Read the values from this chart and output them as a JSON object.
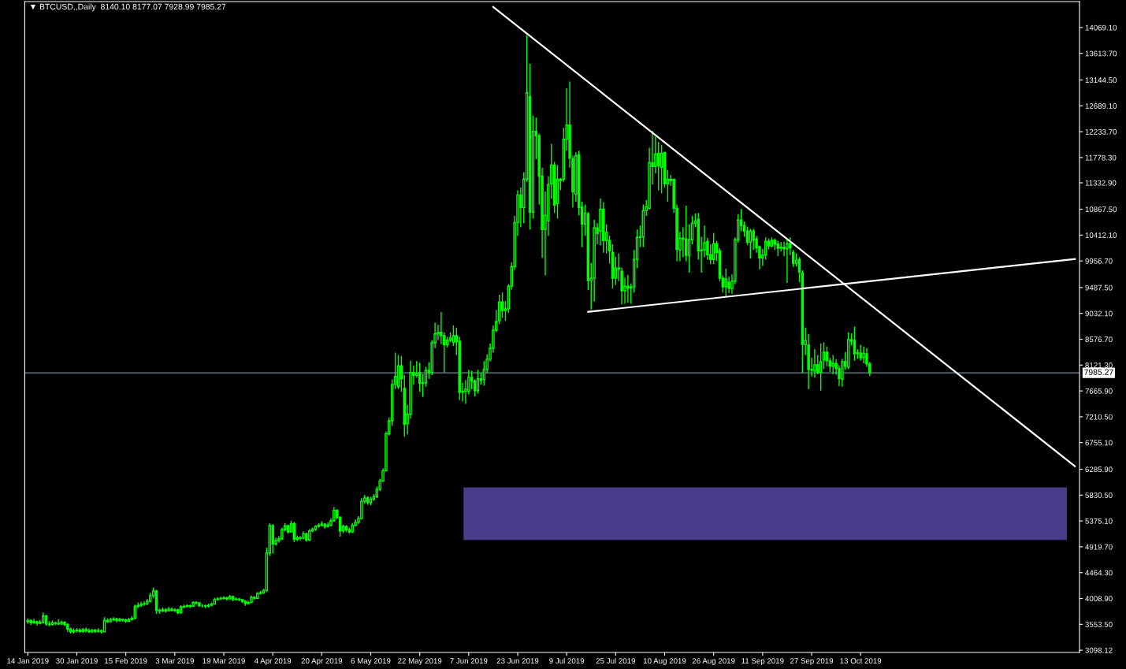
{
  "chart_data": {
    "type": "candlestick",
    "title": "▼ BTCUSD,,Daily  8140.10 8177.07 7928.99 7985.27",
    "color": "#00ff00",
    "x": [
      "2019-01-14",
      "2019-01-15",
      "2019-01-16",
      "2019-01-17",
      "2019-01-18",
      "2019-01-19",
      "2019-01-20",
      "2019-01-21",
      "2019-01-22",
      "2019-01-23",
      "2019-01-24",
      "2019-01-25",
      "2019-01-26",
      "2019-01-27",
      "2019-01-28",
      "2019-01-29",
      "2019-01-30",
      "2019-01-31",
      "2019-02-01",
      "2019-02-02",
      "2019-02-03",
      "2019-02-04",
      "2019-02-05",
      "2019-02-06",
      "2019-02-07",
      "2019-02-08",
      "2019-02-09",
      "2019-02-10",
      "2019-02-11",
      "2019-02-12",
      "2019-02-13",
      "2019-02-14",
      "2019-02-15",
      "2019-02-16",
      "2019-02-17",
      "2019-02-18",
      "2019-02-19",
      "2019-02-20",
      "2019-02-21",
      "2019-02-22",
      "2019-02-23",
      "2019-02-24",
      "2019-02-25",
      "2019-02-26",
      "2019-02-27",
      "2019-02-28",
      "2019-03-01",
      "2019-03-02",
      "2019-03-03",
      "2019-03-04",
      "2019-03-05",
      "2019-03-06",
      "2019-03-07",
      "2019-03-08",
      "2019-03-09",
      "2019-03-10",
      "2019-03-11",
      "2019-03-12",
      "2019-03-13",
      "2019-03-14",
      "2019-03-15",
      "2019-03-16",
      "2019-03-17",
      "2019-03-18",
      "2019-03-19",
      "2019-03-20",
      "2019-03-21",
      "2019-03-22",
      "2019-03-23",
      "2019-03-24",
      "2019-03-25",
      "2019-03-26",
      "2019-03-27",
      "2019-03-28",
      "2019-03-29",
      "2019-03-30",
      "2019-03-31",
      "2019-04-01",
      "2019-04-02",
      "2019-04-03",
      "2019-04-04",
      "2019-04-05",
      "2019-04-06",
      "2019-04-07",
      "2019-04-08",
      "2019-04-09",
      "2019-04-10",
      "2019-04-11",
      "2019-04-12",
      "2019-04-13",
      "2019-04-14",
      "2019-04-15",
      "2019-04-16",
      "2019-04-17",
      "2019-04-18",
      "2019-04-19",
      "2019-04-20",
      "2019-04-21",
      "2019-04-22",
      "2019-04-23",
      "2019-04-24",
      "2019-04-25",
      "2019-04-26",
      "2019-04-27",
      "2019-04-28",
      "2019-04-29",
      "2019-04-30",
      "2019-05-01",
      "2019-05-02",
      "2019-05-03",
      "2019-05-04",
      "2019-05-05",
      "2019-05-06",
      "2019-05-07",
      "2019-05-08",
      "2019-05-09",
      "2019-05-10",
      "2019-05-11",
      "2019-05-12",
      "2019-05-13",
      "2019-05-14",
      "2019-05-15",
      "2019-05-16",
      "2019-05-17",
      "2019-05-18",
      "2019-05-19",
      "2019-05-20",
      "2019-05-21",
      "2019-05-22",
      "2019-05-23",
      "2019-05-24",
      "2019-05-25",
      "2019-05-26",
      "2019-05-27",
      "2019-05-28",
      "2019-05-29",
      "2019-05-30",
      "2019-05-31",
      "2019-06-01",
      "2019-06-02",
      "2019-06-03",
      "2019-06-04",
      "2019-06-05",
      "2019-06-06",
      "2019-06-07",
      "2019-06-08",
      "2019-06-09",
      "2019-06-10",
      "2019-06-11",
      "2019-06-12",
      "2019-06-13",
      "2019-06-14",
      "2019-06-15",
      "2019-06-16",
      "2019-06-17",
      "2019-06-18",
      "2019-06-19",
      "2019-06-20",
      "2019-06-21",
      "2019-06-22",
      "2019-06-23",
      "2019-06-24",
      "2019-06-25",
      "2019-06-26",
      "2019-06-27",
      "2019-06-28",
      "2019-06-29",
      "2019-06-30",
      "2019-07-01",
      "2019-07-02",
      "2019-07-03",
      "2019-07-04",
      "2019-07-05",
      "2019-07-06",
      "2019-07-07",
      "2019-07-08",
      "2019-07-09",
      "2019-07-10",
      "2019-07-11",
      "2019-07-12",
      "2019-07-13",
      "2019-07-14",
      "2019-07-15",
      "2019-07-16",
      "2019-07-17",
      "2019-07-18",
      "2019-07-19",
      "2019-07-20",
      "2019-07-21",
      "2019-07-22",
      "2019-07-23",
      "2019-07-24",
      "2019-07-25",
      "2019-07-26",
      "2019-07-27",
      "2019-07-28",
      "2019-07-29",
      "2019-07-30",
      "2019-07-31",
      "2019-08-01",
      "2019-08-02",
      "2019-08-03",
      "2019-08-04",
      "2019-08-05",
      "2019-08-06",
      "2019-08-07",
      "2019-08-08",
      "2019-08-09",
      "2019-08-10",
      "2019-08-11",
      "2019-08-12",
      "2019-08-13",
      "2019-08-14",
      "2019-08-15",
      "2019-08-16",
      "2019-08-17",
      "2019-08-18",
      "2019-08-19",
      "2019-08-20",
      "2019-08-21",
      "2019-08-22",
      "2019-08-23",
      "2019-08-24",
      "2019-08-25",
      "2019-08-26",
      "2019-08-27",
      "2019-08-28",
      "2019-08-29",
      "2019-08-30",
      "2019-08-31",
      "2019-09-01",
      "2019-09-02",
      "2019-09-03",
      "2019-09-04",
      "2019-09-05",
      "2019-09-06",
      "2019-09-07",
      "2019-09-08",
      "2019-09-09",
      "2019-09-10",
      "2019-09-11",
      "2019-09-12",
      "2019-09-13",
      "2019-09-14",
      "2019-09-15",
      "2019-09-16",
      "2019-09-17",
      "2019-09-18",
      "2019-09-19",
      "2019-09-20",
      "2019-09-21",
      "2019-09-22",
      "2019-09-23",
      "2019-09-24",
      "2019-09-25",
      "2019-09-26",
      "2019-09-27",
      "2019-09-28",
      "2019-09-29",
      "2019-09-30",
      "2019-10-01",
      "2019-10-02",
      "2019-10-03",
      "2019-10-04",
      "2019-10-05",
      "2019-10-06",
      "2019-10-07",
      "2019-10-08",
      "2019-10-09",
      "2019-10-10",
      "2019-10-11",
      "2019-10-12",
      "2019-10-13",
      "2019-10-14",
      "2019-10-15",
      "2019-10-16"
    ],
    "ohlc": [
      [
        3600,
        3660,
        3560,
        3620
      ],
      [
        3620,
        3640,
        3540,
        3580
      ],
      [
        3580,
        3650,
        3560,
        3600
      ],
      [
        3600,
        3620,
        3530,
        3570
      ],
      [
        3570,
        3630,
        3550,
        3590
      ],
      [
        3590,
        3760,
        3570,
        3700
      ],
      [
        3700,
        3720,
        3530,
        3560
      ],
      [
        3560,
        3610,
        3520,
        3550
      ],
      [
        3550,
        3620,
        3530,
        3580
      ],
      [
        3580,
        3600,
        3540,
        3570
      ],
      [
        3570,
        3640,
        3540,
        3560
      ],
      [
        3560,
        3620,
        3540,
        3590
      ],
      [
        3590,
        3610,
        3520,
        3550
      ],
      [
        3550,
        3570,
        3420,
        3470
      ],
      [
        3470,
        3500,
        3390,
        3420
      ],
      [
        3420,
        3480,
        3390,
        3440
      ],
      [
        3440,
        3490,
        3410,
        3450
      ],
      [
        3450,
        3480,
        3400,
        3430
      ],
      [
        3430,
        3490,
        3400,
        3460
      ],
      [
        3460,
        3500,
        3410,
        3440
      ],
      [
        3440,
        3480,
        3400,
        3420
      ],
      [
        3420,
        3470,
        3400,
        3450
      ],
      [
        3450,
        3470,
        3400,
        3430
      ],
      [
        3430,
        3480,
        3410,
        3440
      ],
      [
        3440,
        3460,
        3390,
        3420
      ],
      [
        3420,
        3680,
        3410,
        3620
      ],
      [
        3620,
        3660,
        3580,
        3600
      ],
      [
        3600,
        3670,
        3590,
        3630
      ],
      [
        3630,
        3680,
        3610,
        3650
      ],
      [
        3650,
        3670,
        3590,
        3620
      ],
      [
        3620,
        3670,
        3600,
        3640
      ],
      [
        3640,
        3660,
        3600,
        3630
      ],
      [
        3630,
        3650,
        3580,
        3610
      ],
      [
        3610,
        3670,
        3590,
        3640
      ],
      [
        3640,
        3700,
        3620,
        3660
      ],
      [
        3660,
        3900,
        3640,
        3870
      ],
      [
        3870,
        3940,
        3840,
        3890
      ],
      [
        3890,
        3950,
        3860,
        3910
      ],
      [
        3910,
        3960,
        3880,
        3920
      ],
      [
        3920,
        4000,
        3890,
        3960
      ],
      [
        3960,
        4110,
        3940,
        4060
      ],
      [
        4060,
        4200,
        4020,
        4140
      ],
      [
        4140,
        4160,
        3740,
        3800
      ],
      [
        3800,
        3830,
        3740,
        3790
      ],
      [
        3790,
        3850,
        3770,
        3810
      ],
      [
        3810,
        3840,
        3760,
        3790
      ],
      [
        3790,
        3860,
        3780,
        3820
      ],
      [
        3820,
        3850,
        3780,
        3800
      ],
      [
        3800,
        3840,
        3770,
        3810
      ],
      [
        3810,
        3830,
        3730,
        3760
      ],
      [
        3760,
        3890,
        3740,
        3860
      ],
      [
        3860,
        3900,
        3840,
        3870
      ],
      [
        3870,
        3910,
        3850,
        3880
      ],
      [
        3880,
        3900,
        3840,
        3870
      ],
      [
        3870,
        3960,
        3860,
        3940
      ],
      [
        3940,
        3960,
        3900,
        3930
      ],
      [
        3930,
        3950,
        3860,
        3880
      ],
      [
        3880,
        3910,
        3850,
        3880
      ],
      [
        3880,
        3900,
        3840,
        3870
      ],
      [
        3870,
        3920,
        3850,
        3890
      ],
      [
        3890,
        3940,
        3870,
        3910
      ],
      [
        3910,
        4020,
        3900,
        3990
      ],
      [
        3990,
        4030,
        3970,
        4000
      ],
      [
        4000,
        4040,
        3980,
        4010
      ],
      [
        4010,
        4050,
        3990,
        4020
      ],
      [
        4020,
        4040,
        3970,
        4000
      ],
      [
        4000,
        4070,
        3990,
        4040
      ],
      [
        4040,
        4060,
        3960,
        3990
      ],
      [
        3990,
        4030,
        3970,
        4000
      ],
      [
        4000,
        4020,
        3960,
        3990
      ],
      [
        3990,
        4000,
        3930,
        3960
      ],
      [
        3960,
        3980,
        3880,
        3920
      ],
      [
        3920,
        3970,
        3900,
        3940
      ],
      [
        3940,
        4060,
        3930,
        4030
      ],
      [
        4030,
        4050,
        3990,
        4010
      ],
      [
        4010,
        4120,
        4000,
        4100
      ],
      [
        4100,
        4140,
        4080,
        4110
      ],
      [
        4110,
        4180,
        4090,
        4150
      ],
      [
        4150,
        4900,
        4120,
        4810
      ],
      [
        4810,
        5330,
        4760,
        5290
      ],
      [
        5290,
        5320,
        4800,
        4970
      ],
      [
        4970,
        5080,
        4940,
        5030
      ],
      [
        5030,
        5110,
        4990,
        5060
      ],
      [
        5060,
        5260,
        5040,
        5220
      ],
      [
        5220,
        5340,
        5190,
        5290
      ],
      [
        5290,
        5310,
        5150,
        5180
      ],
      [
        5180,
        5380,
        5170,
        5330
      ],
      [
        5330,
        5360,
        5000,
        5050
      ],
      [
        5050,
        5120,
        5020,
        5080
      ],
      [
        5080,
        5110,
        5030,
        5070
      ],
      [
        5070,
        5190,
        5050,
        5150
      ],
      [
        5150,
        5170,
        5010,
        5040
      ],
      [
        5040,
        5230,
        5020,
        5200
      ],
      [
        5200,
        5260,
        5180,
        5230
      ],
      [
        5230,
        5300,
        5200,
        5280
      ],
      [
        5280,
        5330,
        5260,
        5300
      ],
      [
        5300,
        5370,
        5280,
        5320
      ],
      [
        5320,
        5340,
        5240,
        5280
      ],
      [
        5280,
        5350,
        5260,
        5300
      ],
      [
        5300,
        5420,
        5280,
        5380
      ],
      [
        5380,
        5620,
        5360,
        5560
      ],
      [
        5560,
        5580,
        5400,
        5440
      ],
      [
        5440,
        5460,
        5100,
        5200
      ],
      [
        5200,
        5310,
        5160,
        5280
      ],
      [
        5280,
        5300,
        5180,
        5220
      ],
      [
        5220,
        5260,
        5150,
        5180
      ],
      [
        5180,
        5340,
        5160,
        5300
      ],
      [
        5300,
        5400,
        5280,
        5350
      ],
      [
        5350,
        5460,
        5320,
        5420
      ],
      [
        5420,
        5780,
        5400,
        5720
      ],
      [
        5720,
        5830,
        5680,
        5780
      ],
      [
        5780,
        5810,
        5660,
        5700
      ],
      [
        5700,
        5800,
        5650,
        5760
      ],
      [
        5760,
        5850,
        5730,
        5800
      ],
      [
        5800,
        5980,
        5780,
        5930
      ],
      [
        5930,
        6120,
        5900,
        6080
      ],
      [
        6080,
        6300,
        6060,
        6260
      ],
      [
        6260,
        6950,
        6240,
        6910
      ],
      [
        6910,
        7200,
        6880,
        7140
      ],
      [
        7140,
        7870,
        7050,
        7780
      ],
      [
        7780,
        8340,
        7700,
        7920
      ],
      [
        7740,
        8300,
        7700,
        8110
      ],
      [
        8110,
        8280,
        7650,
        7880
      ],
      [
        7710,
        7950,
        6860,
        7075
      ],
      [
        7090,
        7420,
        6900,
        7255
      ],
      [
        7255,
        8200,
        7180,
        7990
      ],
      [
        7990,
        8110,
        7780,
        7940
      ],
      [
        7940,
        8190,
        7900,
        7970
      ],
      [
        7990,
        8160,
        7650,
        7800
      ],
      [
        7800,
        7960,
        7560,
        7810
      ],
      [
        7810,
        8090,
        7740,
        8030
      ],
      [
        8030,
        8170,
        7880,
        7990
      ],
      [
        7990,
        8560,
        7940,
        8515
      ],
      [
        8515,
        8870,
        8420,
        8670
      ],
      [
        8670,
        8830,
        8560,
        8700
      ],
      [
        8700,
        9060,
        8490,
        8640
      ],
      [
        8640,
        8700,
        7990,
        8480
      ],
      [
        8480,
        8620,
        8430,
        8560
      ],
      [
        8560,
        8700,
        8520,
        8600
      ],
      [
        8520,
        8820,
        8460,
        8640
      ],
      [
        8640,
        8780,
        8300,
        8530
      ],
      [
        8543,
        8620,
        7504,
        7643
      ],
      [
        7643,
        7810,
        7480,
        7660
      ],
      [
        7660,
        7860,
        7440,
        7700
      ],
      [
        7660,
        8040,
        7600,
        7905
      ],
      [
        7905,
        8020,
        7700,
        7840
      ],
      [
        7840,
        7870,
        7570,
        7670
      ],
      [
        7670,
        8040,
        7620,
        7880
      ],
      [
        7880,
        7990,
        7780,
        7850
      ],
      [
        7864,
        8190,
        7760,
        8044
      ],
      [
        8044,
        8310,
        7980,
        8224
      ],
      [
        8224,
        8500,
        8180,
        8418
      ],
      [
        8418,
        8820,
        8340,
        8737
      ],
      [
        8737,
        9090,
        8700,
        8889
      ],
      [
        8903,
        9360,
        8840,
        9235
      ],
      [
        9235,
        9400,
        8950,
        9083
      ],
      [
        9083,
        9250,
        8900,
        9111
      ],
      [
        9111,
        9550,
        9040,
        9512
      ],
      [
        9512,
        9930,
        9450,
        9858
      ],
      [
        9858,
        10750,
        9800,
        10634
      ],
      [
        10634,
        11200,
        10400,
        11119
      ],
      [
        11119,
        11250,
        10550,
        10897
      ],
      [
        10897,
        11520,
        10620,
        11396
      ],
      [
        11396,
        13931,
        11350,
        12919
      ],
      [
        12850,
        13434,
        10510,
        10814
      ],
      [
        10814,
        12520,
        10700,
        12241
      ],
      [
        12241,
        12480,
        11750,
        12160
      ],
      [
        12158,
        12200,
        10950,
        11451
      ],
      [
        11451,
        11600,
        10010,
        10510
      ],
      [
        10510,
        11180,
        9700,
        10759
      ],
      [
        10662,
        11450,
        10400,
        11299
      ],
      [
        11313,
        12020,
        11050,
        11645
      ],
      [
        11645,
        11700,
        10800,
        10939
      ],
      [
        10967,
        11650,
        10700,
        11396
      ],
      [
        11396,
        11420,
        11200,
        11370
      ],
      [
        11396,
        12300,
        11350,
        12102
      ],
      [
        12102,
        13000,
        11900,
        12352
      ],
      [
        12352,
        13117,
        11600,
        11770
      ],
      [
        11756,
        11810,
        10900,
        11174
      ],
      [
        11133,
        11870,
        11000,
        11811
      ],
      [
        11825,
        11900,
        10760,
        10897
      ],
      [
        10911,
        11000,
        10200,
        10606
      ],
      [
        10606,
        10950,
        10400,
        10800
      ],
      [
        10786,
        10820,
        9440,
        9609
      ],
      [
        9609,
        9920,
        9100,
        9650
      ],
      [
        9651,
        10680,
        9240,
        10537
      ],
      [
        10537,
        10620,
        10250,
        10440
      ],
      [
        10482,
        11060,
        10230,
        10870
      ],
      [
        10870,
        10990,
        10100,
        10316
      ],
      [
        10316,
        10600,
        10090,
        10460
      ],
      [
        10316,
        10400,
        9910,
        10136
      ],
      [
        10108,
        10250,
        9470,
        9651
      ],
      [
        9651,
        10030,
        9530,
        9831
      ],
      [
        9831,
        10090,
        9600,
        9810
      ],
      [
        9776,
        9840,
        9190,
        9429
      ],
      [
        9429,
        9660,
        9200,
        9510
      ],
      [
        9510,
        9710,
        9220,
        9480
      ],
      [
        9480,
        9560,
        9200,
        9500
      ],
      [
        9498,
        10150,
        9400,
        9983
      ],
      [
        9983,
        10510,
        9830,
        10371
      ],
      [
        10371,
        10580,
        10200,
        10380
      ],
      [
        10380,
        10950,
        10200,
        10842
      ],
      [
        10842,
        11030,
        10750,
        10910
      ],
      [
        10884,
        11950,
        10860,
        11687
      ],
      [
        11687,
        12250,
        11300,
        11620
      ],
      [
        11620,
        12150,
        11500,
        11839
      ],
      [
        11853,
        12050,
        11200,
        11631
      ],
      [
        11603,
        12000,
        11150,
        11853
      ],
      [
        11867,
        11880,
        11250,
        11313
      ],
      [
        11313,
        11560,
        11000,
        11396
      ],
      [
        11396,
        11470,
        11280,
        11370
      ],
      [
        11396,
        11400,
        10800,
        10884
      ],
      [
        10884,
        10950,
        9950,
        10163
      ],
      [
        10150,
        10470,
        9950,
        10357
      ],
      [
        10357,
        10550,
        10020,
        10340
      ],
      [
        10343,
        10930,
        9950,
        10053
      ],
      [
        10053,
        10600,
        9750,
        10330
      ],
      [
        10330,
        10750,
        10250,
        10620
      ],
      [
        10620,
        10790,
        10550,
        10660
      ],
      [
        10690,
        10800,
        9980,
        10136
      ],
      [
        10136,
        10380,
        9750,
        10150
      ],
      [
        10150,
        10580,
        10020,
        10274
      ],
      [
        10302,
        10360,
        9980,
        10066
      ],
      [
        10066,
        10250,
        9900,
        9983
      ],
      [
        9983,
        10450,
        9900,
        10260
      ],
      [
        10260,
        10310,
        9950,
        10108
      ],
      [
        10136,
        10180,
        9600,
        9651
      ],
      [
        9651,
        9700,
        9400,
        9498
      ],
      [
        9498,
        9820,
        9330,
        9640
      ],
      [
        9582,
        9680,
        9390,
        9471
      ],
      [
        9471,
        9720,
        9380,
        9600
      ],
      [
        9600,
        10370,
        9550,
        10330
      ],
      [
        10330,
        10780,
        10280,
        10676
      ],
      [
        10676,
        10870,
        10480,
        10580
      ],
      [
        10580,
        10650,
        10380,
        10482
      ],
      [
        10482,
        10560,
        10240,
        10288
      ],
      [
        10288,
        10520,
        10000,
        10482
      ],
      [
        10482,
        10520,
        10150,
        10320
      ],
      [
        10343,
        10400,
        10100,
        10191
      ],
      [
        10205,
        10230,
        9810,
        10011
      ],
      [
        10011,
        10170,
        9870,
        10060
      ],
      [
        10060,
        10370,
        9980,
        10302
      ],
      [
        10302,
        10350,
        10160,
        10220
      ],
      [
        10220,
        10370,
        10190,
        10320
      ],
      [
        10320,
        10350,
        10150,
        10250
      ],
      [
        10250,
        10310,
        10040,
        10180
      ],
      [
        10180,
        10290,
        10120,
        10200
      ],
      [
        10200,
        10300,
        10040,
        10170
      ],
      [
        10170,
        10340,
        9570,
        10260
      ],
      [
        10260,
        10370,
        10060,
        10190
      ],
      [
        10108,
        10150,
        9850,
        9914
      ],
      [
        9914,
        10090,
        9860,
        9970
      ],
      [
        9983,
        10020,
        9580,
        9762
      ],
      [
        9748,
        9790,
        7980,
        8487
      ],
      [
        8487,
        8780,
        8300,
        8550
      ],
      [
        8473,
        8670,
        7700,
        8044
      ],
      [
        8044,
        8250,
        7920,
        8030
      ],
      [
        8016,
        8400,
        7900,
        8127
      ],
      [
        8127,
        8300,
        7960,
        7990
      ],
      [
        7990,
        8500,
        7670,
        8183
      ],
      [
        8210,
        8520,
        8050,
        8349
      ],
      [
        8349,
        8450,
        8100,
        8196
      ],
      [
        8196,
        8250,
        8000,
        8100
      ],
      [
        8100,
        8300,
        7960,
        8150
      ],
      [
        8150,
        8230,
        7950,
        8060
      ],
      [
        8060,
        8120,
        7750,
        7885
      ],
      [
        7871,
        8230,
        7740,
        8183
      ],
      [
        8183,
        8350,
        8040,
        8100
      ],
      [
        8086,
        8700,
        8050,
        8571
      ],
      [
        8571,
        8680,
        8470,
        8540
      ],
      [
        8557,
        8800,
        8200,
        8321
      ],
      [
        8321,
        8400,
        8230,
        8340
      ],
      [
        8335,
        8480,
        8200,
        8250
      ],
      [
        8250,
        8450,
        8150,
        8330
      ],
      [
        8321,
        8420,
        8090,
        8141
      ],
      [
        8140.1,
        8177.07,
        7928.99,
        7985.27
      ]
    ],
    "series": [
      {
        "type": "line",
        "color": "#ffffff",
        "x": [
          "2019-06-15",
          "2019-12-22"
        ],
        "values": [
          14430,
          6340
        ]
      },
      {
        "type": "line",
        "color": "#ffffff",
        "x": [
          "2019-07-16",
          "2019-12-22"
        ],
        "values": [
          9060,
          9990
        ]
      }
    ],
    "bands": [
      {
        "axis": "y",
        "from": 5039,
        "to": 5967,
        "color": "#483d8b"
      }
    ],
    "ref_lines": [
      {
        "axis": "y",
        "value": 7985.27,
        "label": "7985.27",
        "color": "#778899"
      }
    ],
    "xlim": [
      "2019-01-13",
      "2019-12-23T12:00"
    ],
    "xticks": [
      {
        "value": "2019-01-14",
        "label": "14 Jan 2019"
      },
      {
        "value": "2019-01-30",
        "label": "30 Jan 2019"
      },
      {
        "value": "2019-02-15",
        "label": "15 Feb 2019"
      },
      {
        "value": "2019-03-03",
        "label": "3 Mar 2019"
      },
      {
        "value": "2019-03-19",
        "label": "19 Mar 2019"
      },
      {
        "value": "2019-04-04",
        "label": "4 Apr 2019"
      },
      {
        "value": "2019-04-20",
        "label": "20 Apr 2019"
      },
      {
        "value": "2019-05-06",
        "label": "6 May 2019"
      },
      {
        "value": "2019-05-22",
        "label": "22 May 2019"
      },
      {
        "value": "2019-06-07",
        "label": "7 Jun 2019"
      },
      {
        "value": "2019-06-23",
        "label": "23 Jun 2019"
      },
      {
        "value": "2019-07-09",
        "label": "9 Jul 2019"
      },
      {
        "value": "2019-07-25",
        "label": "25 Jul 2019"
      },
      {
        "value": "2019-08-10",
        "label": "10 Aug 2019"
      },
      {
        "value": "2019-08-26",
        "label": "26 Aug 2019"
      },
      {
        "value": "2019-09-11",
        "label": "11 Sep 2019"
      },
      {
        "value": "2019-09-27",
        "label": "27 Sep 2019"
      },
      {
        "value": "2019-10-13",
        "label": "13 Oct 2019"
      }
    ],
    "ylim": [
      3058,
      14526
    ],
    "yticks": [
      {
        "value": 3098.12,
        "label": "3098.12"
      },
      {
        "value": 3553.5,
        "label": "3553.50"
      },
      {
        "value": 4008.9,
        "label": "4008.90"
      },
      {
        "value": 4464.3,
        "label": "4464.30"
      },
      {
        "value": 4919.7,
        "label": "4919.70"
      },
      {
        "value": 5375.1,
        "label": "5375.10"
      },
      {
        "value": 5830.5,
        "label": "5830.50"
      },
      {
        "value": 6285.9,
        "label": "6285.90"
      },
      {
        "value": 6755.1,
        "label": "6755.10"
      },
      {
        "value": 7210.5,
        "label": "7210.50"
      },
      {
        "value": 7665.9,
        "label": "7665.90"
      },
      {
        "value": 8121.3,
        "label": "8121.30"
      },
      {
        "value": 8576.7,
        "label": "8576.70"
      },
      {
        "value": 9032.1,
        "label": "9032.10"
      },
      {
        "value": 9487.5,
        "label": "9487.50"
      },
      {
        "value": 9956.7,
        "label": "9956.70"
      },
      {
        "value": 10412.1,
        "label": "10412.10"
      },
      {
        "value": 10867.5,
        "label": "10867.50"
      },
      {
        "value": 11332.9,
        "label": "11332.90"
      },
      {
        "value": 11778.3,
        "label": "11778.30"
      },
      {
        "value": 12233.7,
        "label": "12233.70"
      },
      {
        "value": 12689.1,
        "label": "12689.10"
      },
      {
        "value": 13144.5,
        "label": "13144.50"
      },
      {
        "value": 13613.7,
        "label": "13613.70"
      },
      {
        "value": 14069.1,
        "label": "14069.10"
      }
    ],
    "grid": false,
    "legend": false
  }
}
